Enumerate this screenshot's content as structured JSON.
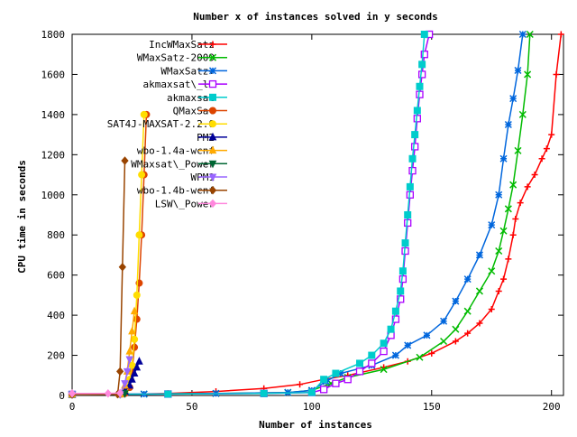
{
  "chart_data": {
    "type": "line",
    "title": "Number x of instances solved in y seconds",
    "xlabel": "Number of instances",
    "ylabel": "CPU time in seconds",
    "xlim": [
      0,
      205
    ],
    "ylim": [
      0,
      1800
    ],
    "xticks": [
      0,
      50,
      100,
      150,
      200
    ],
    "yticks": [
      0,
      200,
      400,
      600,
      800,
      1000,
      1200,
      1400,
      1600,
      1800
    ],
    "grid": false,
    "legend_position": "top-left",
    "series": [
      {
        "name": "IncWMaxSatz",
        "color": "#ff0000",
        "marker": "plus",
        "points": [
          [
            0,
            5
          ],
          [
            20,
            6
          ],
          [
            40,
            10
          ],
          [
            60,
            20
          ],
          [
            80,
            35
          ],
          [
            95,
            55
          ],
          [
            105,
            80
          ],
          [
            115,
            100
          ],
          [
            130,
            140
          ],
          [
            140,
            170
          ],
          [
            150,
            210
          ],
          [
            160,
            270
          ],
          [
            165,
            310
          ],
          [
            170,
            360
          ],
          [
            175,
            430
          ],
          [
            178,
            520
          ],
          [
            180,
            580
          ],
          [
            182,
            680
          ],
          [
            184,
            800
          ],
          [
            185,
            880
          ],
          [
            187,
            960
          ],
          [
            190,
            1040
          ],
          [
            193,
            1100
          ],
          [
            196,
            1180
          ],
          [
            198,
            1230
          ],
          [
            200,
            1300
          ],
          [
            202,
            1600
          ],
          [
            204,
            1800
          ]
        ]
      },
      {
        "name": "WMaxSatz-2009",
        "color": "#00bb00",
        "marker": "cross",
        "points": [
          [
            0,
            5
          ],
          [
            30,
            7
          ],
          [
            60,
            10
          ],
          [
            90,
            15
          ],
          [
            100,
            25
          ],
          [
            108,
            60
          ],
          [
            115,
            90
          ],
          [
            130,
            130
          ],
          [
            145,
            190
          ],
          [
            155,
            270
          ],
          [
            160,
            330
          ],
          [
            165,
            420
          ],
          [
            170,
            520
          ],
          [
            175,
            620
          ],
          [
            178,
            720
          ],
          [
            180,
            820
          ],
          [
            182,
            930
          ],
          [
            184,
            1050
          ],
          [
            186,
            1220
          ],
          [
            188,
            1400
          ],
          [
            190,
            1600
          ],
          [
            191,
            1800
          ]
        ]
      },
      {
        "name": "WMaxSatz+",
        "color": "#0066dd",
        "marker": "star",
        "points": [
          [
            0,
            5
          ],
          [
            30,
            7
          ],
          [
            60,
            10
          ],
          [
            90,
            15
          ],
          [
            100,
            25
          ],
          [
            106,
            70
          ],
          [
            112,
            110
          ],
          [
            125,
            150
          ],
          [
            135,
            200
          ],
          [
            140,
            250
          ],
          [
            148,
            300
          ],
          [
            155,
            370
          ],
          [
            160,
            470
          ],
          [
            165,
            580
          ],
          [
            170,
            700
          ],
          [
            175,
            850
          ],
          [
            178,
            1000
          ],
          [
            180,
            1180
          ],
          [
            182,
            1350
          ],
          [
            184,
            1480
          ],
          [
            186,
            1620
          ],
          [
            188,
            1800
          ]
        ]
      },
      {
        "name": "akmaxsat\\_ls",
        "color": "#aa00ff",
        "marker": "square",
        "points": [
          [
            0,
            5
          ],
          [
            40,
            7
          ],
          [
            80,
            10
          ],
          [
            100,
            15
          ],
          [
            105,
            30
          ],
          [
            110,
            60
          ],
          [
            115,
            80
          ],
          [
            120,
            120
          ],
          [
            125,
            160
          ],
          [
            130,
            220
          ],
          [
            133,
            300
          ],
          [
            135,
            380
          ],
          [
            137,
            480
          ],
          [
            138,
            580
          ],
          [
            139,
            720
          ],
          [
            140,
            860
          ],
          [
            141,
            1000
          ],
          [
            142,
            1120
          ],
          [
            143,
            1240
          ],
          [
            144,
            1380
          ],
          [
            145,
            1500
          ],
          [
            146,
            1600
          ],
          [
            147,
            1700
          ],
          [
            149,
            1800
          ]
        ]
      },
      {
        "name": "akmaxsat",
        "color": "#00cccc",
        "marker": "filled-square",
        "points": [
          [
            0,
            5
          ],
          [
            40,
            7
          ],
          [
            80,
            10
          ],
          [
            100,
            15
          ],
          [
            105,
            80
          ],
          [
            110,
            110
          ],
          [
            120,
            160
          ],
          [
            125,
            200
          ],
          [
            130,
            260
          ],
          [
            133,
            330
          ],
          [
            135,
            420
          ],
          [
            137,
            520
          ],
          [
            138,
            620
          ],
          [
            139,
            760
          ],
          [
            140,
            900
          ],
          [
            141,
            1040
          ],
          [
            142,
            1180
          ],
          [
            143,
            1300
          ],
          [
            144,
            1420
          ],
          [
            145,
            1540
          ],
          [
            146,
            1650
          ],
          [
            147,
            1800
          ]
        ]
      },
      {
        "name": "QMaxSat",
        "color": "#dd4400",
        "marker": "filled-circle",
        "points": [
          [
            0,
            5
          ],
          [
            20,
            6
          ],
          [
            22,
            10
          ],
          [
            24,
            40
          ],
          [
            25,
            120
          ],
          [
            26,
            240
          ],
          [
            27,
            380
          ],
          [
            28,
            560
          ],
          [
            29,
            800
          ],
          [
            30,
            1100
          ],
          [
            31,
            1400
          ]
        ]
      },
      {
        "name": "SAT4J-MAXSAT-2.2.0",
        "color": "#ffdd00",
        "marker": "filled-circle",
        "points": [
          [
            0,
            5
          ],
          [
            20,
            6
          ],
          [
            22,
            20
          ],
          [
            24,
            80
          ],
          [
            25,
            150
          ],
          [
            26,
            280
          ],
          [
            27,
            500
          ],
          [
            28,
            800
          ],
          [
            29,
            1100
          ],
          [
            30,
            1400
          ]
        ]
      },
      {
        "name": "PM2",
        "color": "#000099",
        "marker": "filled-triangle",
        "points": [
          [
            0,
            5
          ],
          [
            20,
            6
          ],
          [
            22,
            20
          ],
          [
            24,
            50
          ],
          [
            25,
            80
          ],
          [
            26,
            110
          ],
          [
            27,
            140
          ],
          [
            28,
            170
          ]
        ]
      },
      {
        "name": "wbo-1.4a-wcnf",
        "color": "#ffaa00",
        "marker": "filled-triangle",
        "points": [
          [
            0,
            5
          ],
          [
            20,
            6
          ],
          [
            22,
            50
          ],
          [
            23,
            120
          ],
          [
            24,
            220
          ],
          [
            25,
            320
          ],
          [
            26,
            420
          ]
        ]
      },
      {
        "name": "WMaxsat\\_Power",
        "color": "#006633",
        "marker": "filled-inverted-triangle",
        "points": [
          [
            0,
            5
          ],
          [
            20,
            6
          ],
          [
            22,
            10
          ]
        ]
      },
      {
        "name": "WPM1",
        "color": "#9966ff",
        "marker": "filled-inverted-triangle",
        "points": [
          [
            0,
            5
          ],
          [
            20,
            6
          ],
          [
            22,
            60
          ],
          [
            23,
            120
          ],
          [
            24,
            180
          ]
        ]
      },
      {
        "name": "wbo-1.4b-wcnf",
        "color": "#994400",
        "marker": "filled-diamond",
        "points": [
          [
            0,
            5
          ],
          [
            19,
            6
          ],
          [
            20,
            120
          ],
          [
            21,
            640
          ],
          [
            22,
            1170
          ]
        ]
      },
      {
        "name": "LSW\\_Power",
        "color": "#ff88dd",
        "marker": "filled-diamond",
        "points": [
          [
            0,
            10
          ],
          [
            15,
            10
          ],
          [
            20,
            12
          ]
        ]
      }
    ]
  }
}
